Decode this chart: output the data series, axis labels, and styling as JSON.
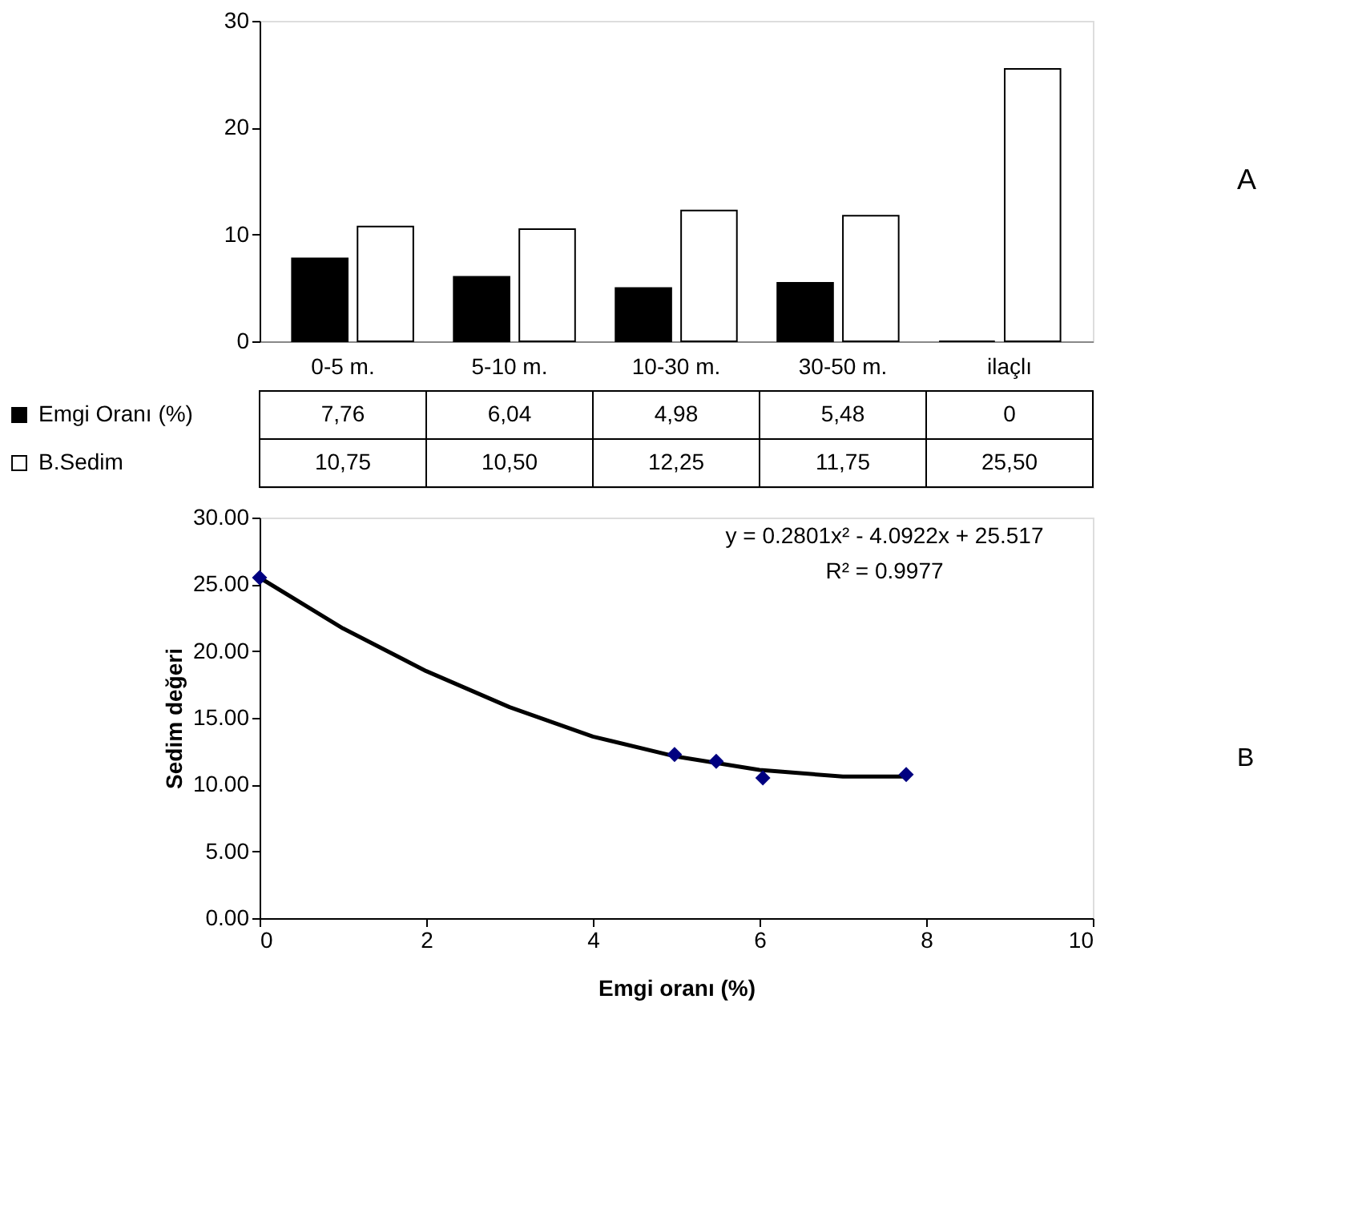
{
  "chart_data": [
    {
      "type": "bar",
      "categories": [
        "0-5 m.",
        "5-10 m.",
        "10-30 m.",
        "30-50 m.",
        "ilaçlı"
      ],
      "ylim": [
        0,
        30
      ],
      "yticks": [
        0,
        10,
        20,
        30
      ],
      "grid": false,
      "legend": "bottom",
      "annotations": [
        "A"
      ],
      "series": [
        {
          "name": "Emgi Oranı (%)",
          "color": "#000000",
          "values": [
            7.76,
            6.04,
            4.98,
            5.48,
            0
          ],
          "value_labels": [
            "7,76",
            "6,04",
            "4,98",
            "5,48",
            "0"
          ]
        },
        {
          "name": "B.Sedim",
          "color": "#ffffff",
          "values": [
            10.75,
            10.5,
            12.25,
            11.75,
            25.5
          ],
          "value_labels": [
            "10,75",
            "10,50",
            "12,25",
            "11,75",
            "25,50"
          ]
        }
      ]
    },
    {
      "type": "scatter",
      "xlabel": "Emgi oranı (%)",
      "ylabel": "Sedim değeri",
      "xlim": [
        0,
        10
      ],
      "xticks": [
        0,
        2,
        4,
        6,
        8,
        10
      ],
      "ylim": [
        0,
        30
      ],
      "yticks": [
        {
          "value": 0,
          "label": "0.00"
        },
        {
          "value": 5,
          "label": "5.00"
        },
        {
          "value": 10,
          "label": "10.00"
        },
        {
          "value": 15,
          "label": "15.00"
        },
        {
          "value": 20,
          "label": "20.00"
        },
        {
          "value": 25,
          "label": "25.00"
        },
        {
          "value": 30,
          "label": "30.00"
        }
      ],
      "grid": false,
      "annotations": [
        "y = 0.2801x² - 4.0922x + 25.517",
        "R² = 0.9977",
        "B"
      ],
      "series": [
        {
          "type": "scatter",
          "color": "#000080",
          "marker": "diamond",
          "x": [
            7.76,
            6.04,
            4.98,
            5.48,
            0
          ],
          "values": [
            10.75,
            10.5,
            12.25,
            11.75,
            25.5
          ]
        },
        {
          "type": "line",
          "color": "#000000",
          "marker": "none",
          "line_style": "solid",
          "x": [
            0,
            1,
            2,
            3,
            4,
            5,
            6,
            7,
            7.76
          ],
          "values": [
            25.5,
            21.7,
            18.5,
            15.8,
            13.6,
            12.1,
            11.1,
            10.6,
            10.6
          ]
        }
      ]
    }
  ]
}
